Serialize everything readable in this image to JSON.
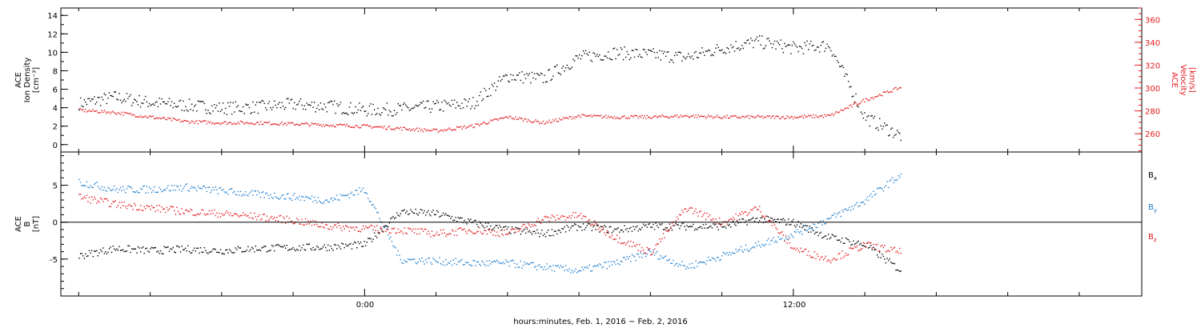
{
  "xlabel": "hours:minutes, Feb.  1, 2016 − Feb.  2, 2016",
  "x_ticks": [
    "0:00",
    "12:00"
  ],
  "colors": {
    "black": "#000000",
    "red": "#e41a1c",
    "blue": "#1f7fd0"
  },
  "chart_data": [
    {
      "type": "scatter",
      "panel": "top",
      "ylabel_lines": [
        "ACE",
        "Ion Density",
        "[cm⁻³]"
      ],
      "ylim": [
        -0.8,
        14.8
      ],
      "yticks": [
        0,
        2,
        4,
        6,
        8,
        10,
        12,
        14
      ],
      "right_ylabel_lines": [
        "ACE",
        "Velocity",
        "[km/s]"
      ],
      "right_ylim": [
        244,
        370
      ],
      "right_yticks": [
        260,
        280,
        300,
        320,
        340,
        360
      ],
      "x_unit": "hours since Feb. 1, 2016 0:00",
      "series": [
        {
          "axis": "left",
          "color": "black",
          "x": [
            -8,
            -7,
            -6,
            -5,
            -4,
            -3,
            -2,
            -1,
            0,
            1,
            2,
            3,
            4,
            5,
            6,
            7,
            8,
            9,
            10,
            11,
            12,
            13,
            14,
            15
          ],
          "y": [
            4.5,
            5.2,
            4.6,
            4.3,
            4.0,
            4.1,
            4.4,
            4.2,
            3.8,
            3.9,
            4.2,
            4.5,
            7.5,
            7.2,
            9.5,
            10.0,
            9.8,
            9.5,
            10.5,
            11.2,
            10.5,
            10.8,
            3.0,
            1.0
          ]
        },
        {
          "axis": "right",
          "color": "red",
          "x": [
            -8,
            -7,
            -6,
            -5,
            -4,
            -3,
            -2,
            -1,
            0,
            1,
            2,
            3,
            4,
            5,
            6,
            7,
            8,
            9,
            10,
            11,
            12,
            13,
            14,
            15
          ],
          "y": [
            281,
            279,
            275,
            271,
            270,
            270,
            269,
            268,
            267,
            265,
            263,
            267,
            275,
            270,
            276,
            275,
            275,
            276,
            275,
            275,
            275,
            276,
            290,
            301
          ]
        }
      ]
    },
    {
      "type": "scatter",
      "panel": "bottom",
      "ylabel_lines": [
        "ACE",
        "B",
        "[nT]"
      ],
      "ylim": [
        -10,
        9.5
      ],
      "yticks": [
        -5,
        0,
        5
      ],
      "x_unit": "hours since Feb. 1, 2016 0:00",
      "series": [
        {
          "name": "Bx",
          "color": "black",
          "x": [
            -8,
            -7,
            -6,
            -5,
            -4,
            -3,
            -2,
            -1,
            0,
            1,
            2,
            3,
            4,
            5,
            6,
            7,
            8,
            9,
            10,
            11,
            12,
            13,
            14,
            15
          ],
          "y": [
            -4.5,
            -3.5,
            -3.8,
            -3.6,
            -3.8,
            -3.5,
            -3.4,
            -3.3,
            -3.0,
            1.5,
            1.2,
            0.0,
            -1.0,
            -1.5,
            -0.5,
            -1.0,
            -0.5,
            -0.5,
            -0.5,
            0.5,
            0.0,
            -2.0,
            -3.0,
            -6.5
          ]
        },
        {
          "name": "By",
          "color": "blue",
          "x": [
            -8,
            -7,
            -6,
            -5,
            -4,
            -3,
            -2,
            -1,
            0,
            1,
            2,
            3,
            4,
            5,
            6,
            7,
            8,
            9,
            10,
            11,
            12,
            13,
            14,
            15
          ],
          "y": [
            5.5,
            4.5,
            4.5,
            4.8,
            4.3,
            3.8,
            3.5,
            3.0,
            4.5,
            -5.0,
            -5.2,
            -5.5,
            -5.5,
            -6.0,
            -6.5,
            -5.5,
            -4.0,
            -6.0,
            -4.5,
            -3.0,
            -1.5,
            0.5,
            3.0,
            6.5
          ]
        },
        {
          "name": "Bz",
          "color": "red",
          "x": [
            -8,
            -7,
            -6,
            -5,
            -4,
            -3,
            -2,
            -1,
            0,
            1,
            2,
            3,
            4,
            5,
            6,
            7,
            8,
            9,
            10,
            11,
            12,
            13,
            14,
            15
          ],
          "y": [
            3.5,
            2.5,
            2.0,
            1.5,
            1.2,
            0.8,
            0.3,
            -0.5,
            -0.8,
            -1.0,
            -1.5,
            -1.0,
            -1.5,
            0.5,
            1.0,
            -2.0,
            -4.0,
            2.0,
            0.0,
            2.0,
            -3.5,
            -5.0,
            -3.0,
            -4.0
          ]
        }
      ],
      "legend": [
        "B",
        "B",
        "B"
      ],
      "legend_subs": [
        "x",
        "y",
        "z"
      ],
      "legend_placement": "right"
    }
  ]
}
